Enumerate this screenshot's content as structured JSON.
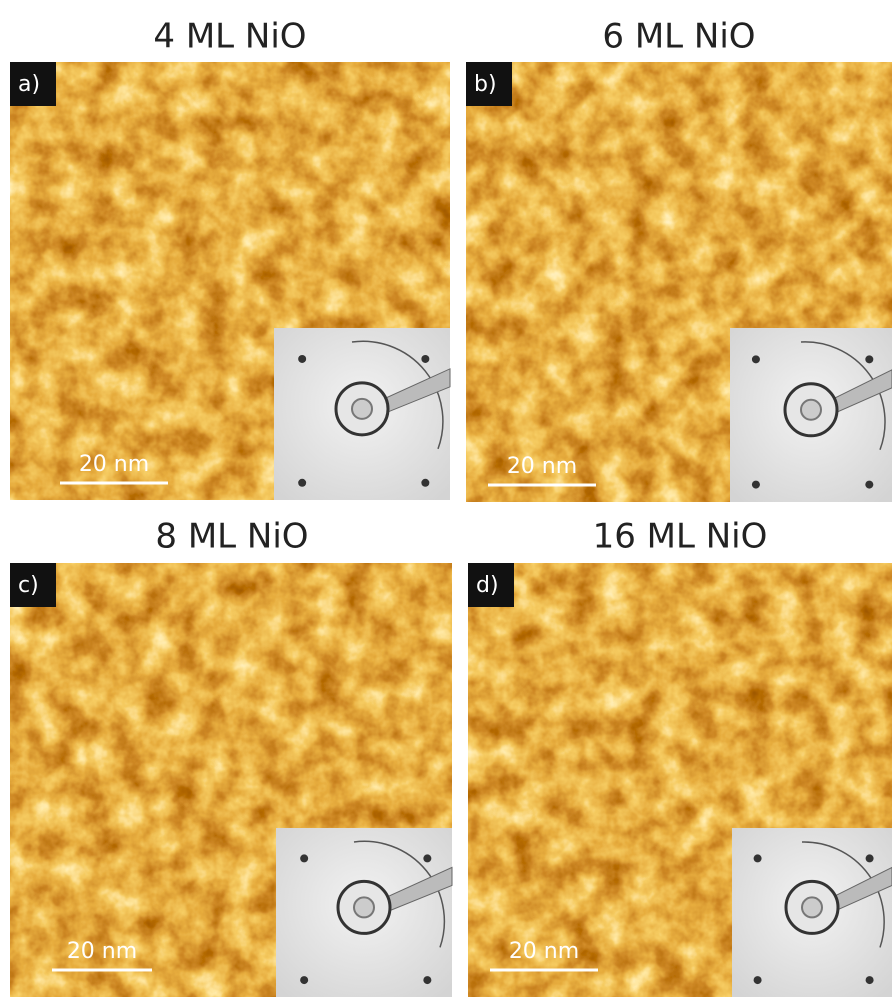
{
  "panels": [
    {
      "title": "4 ML NiO",
      "label": "a)",
      "scale_bar": "20 nm"
    },
    {
      "title": "6 ML NiO",
      "label": "b)",
      "scale_bar": "20 nm"
    },
    {
      "title": "8 ML NiO",
      "label": "c)",
      "scale_bar": "20 nm"
    },
    {
      "title": "16 ML NiO",
      "label": "d)",
      "scale_bar": "20 nm"
    }
  ]
}
